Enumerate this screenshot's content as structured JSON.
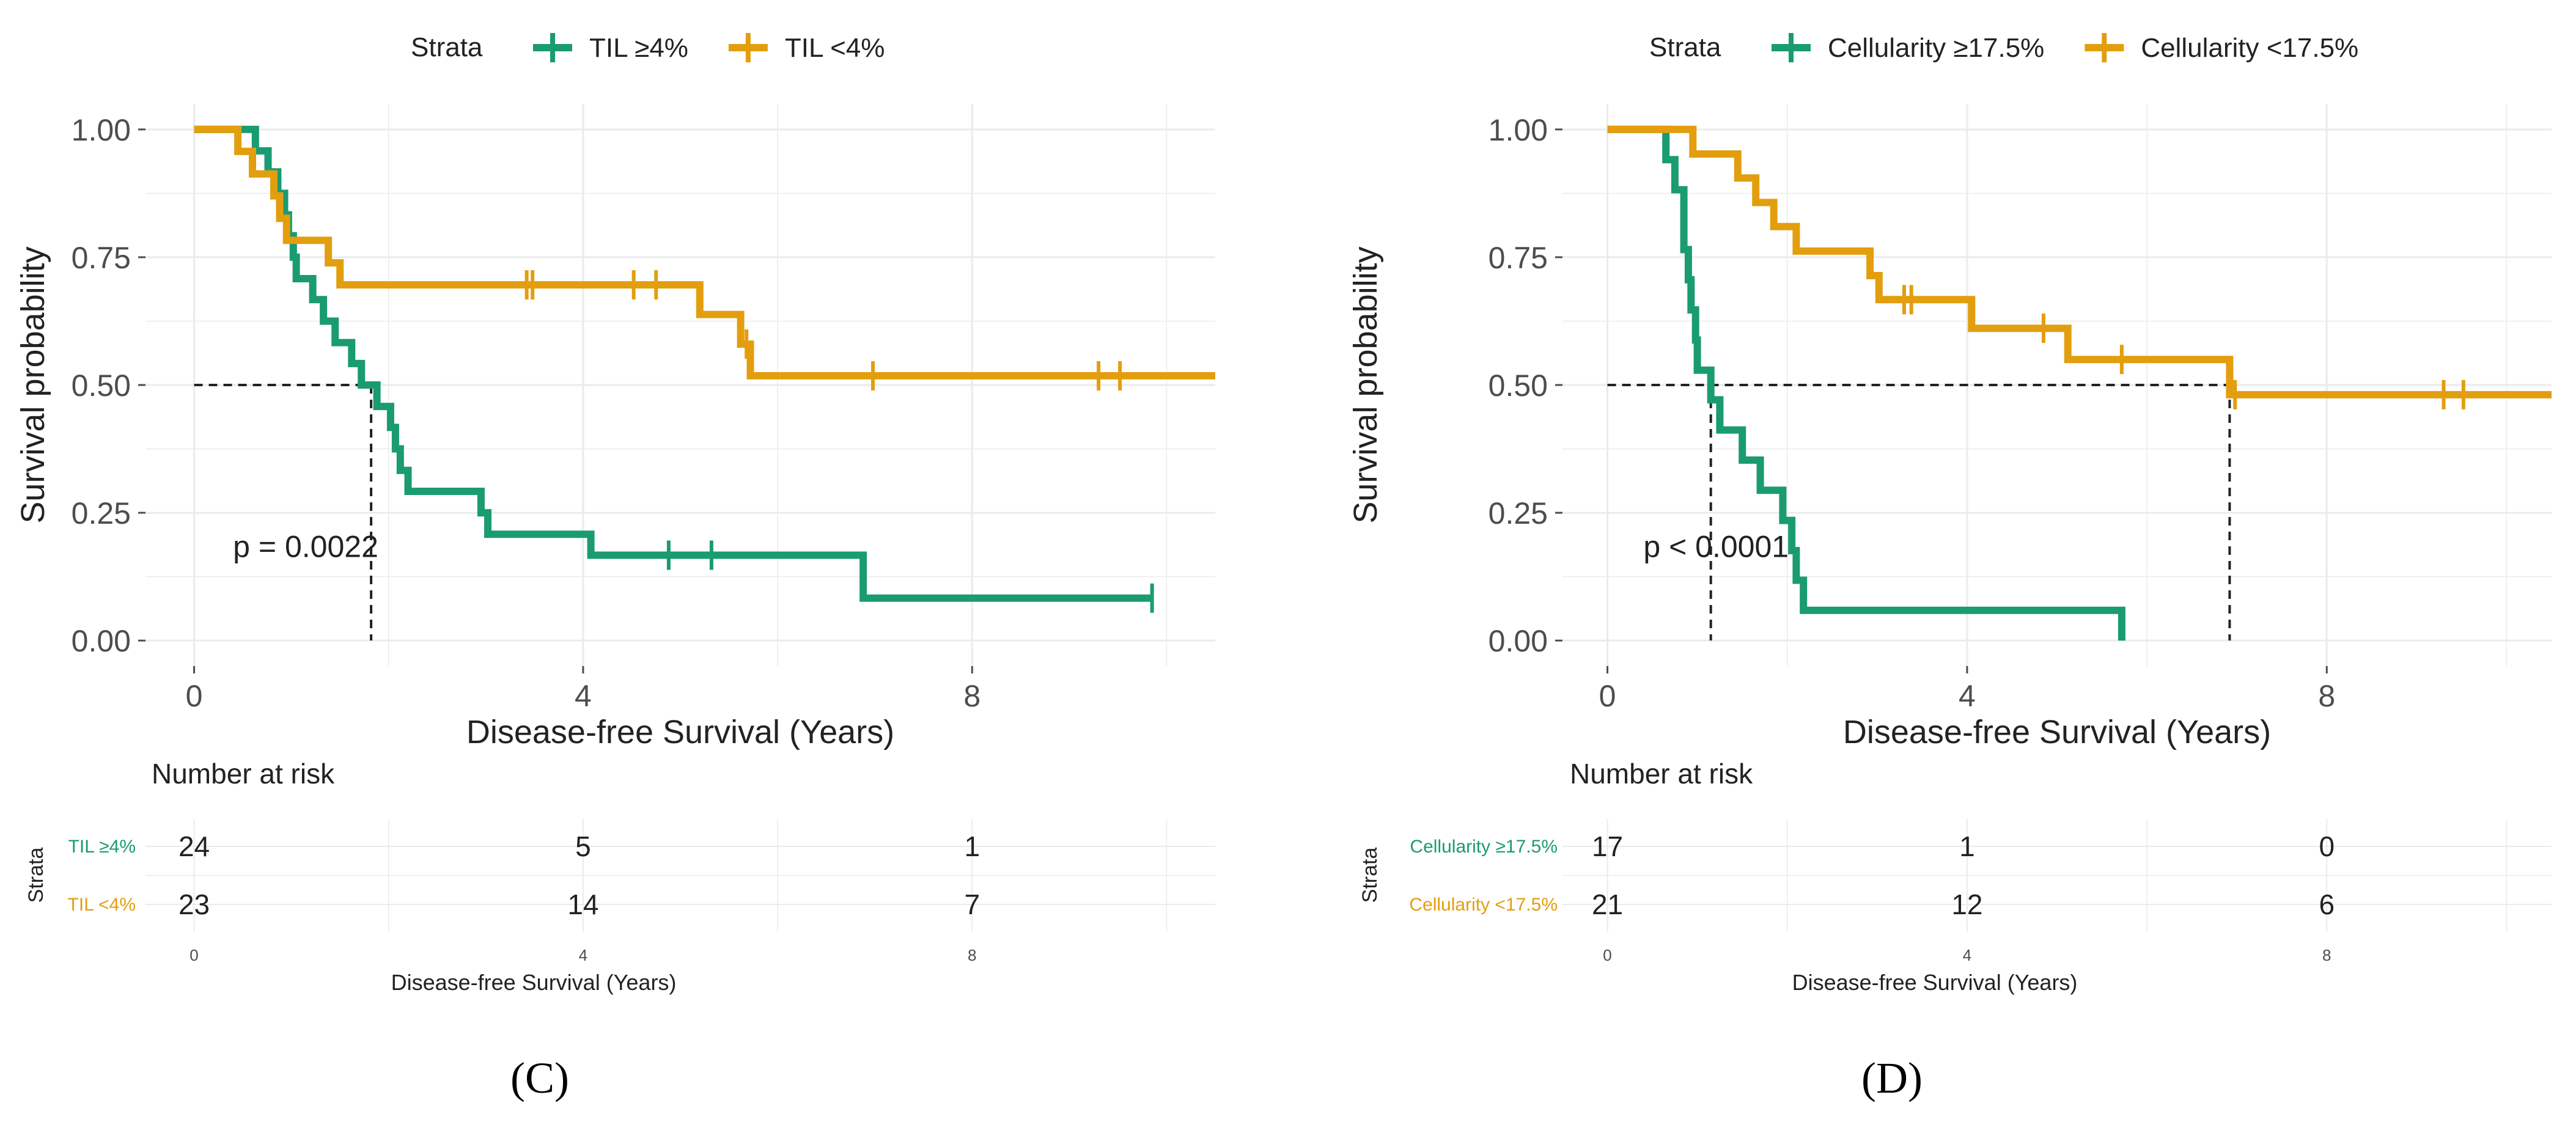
{
  "strata_word": "Strata",
  "number_at_risk_title": "Number at risk",
  "colors": {
    "high": "#1a9b72",
    "low": "#e39e0e",
    "grid": "#ebebeb",
    "text": "#222222",
    "tick": "#4d4d4d"
  },
  "chart_data": [
    {
      "type": "line",
      "panel_label": "(C)",
      "ylabel": "Survival probability",
      "xlabel": "Disease-free Survival (Years)",
      "xlim": [
        -0.5,
        10.5
      ],
      "ylim": [
        -0.05,
        1.05
      ],
      "x_ticks": [
        0,
        4,
        8
      ],
      "y_ticks": [
        0.0,
        0.25,
        0.5,
        0.75,
        1.0
      ],
      "y_tick_labels": [
        "0.00",
        "0.25",
        "0.50",
        "0.75",
        "1.00"
      ],
      "pvalue": "p = 0.0022",
      "median_lines": [
        1.82
      ],
      "series": [
        {
          "name": "TIL ≥4%",
          "color_key": "high",
          "steps": [
            [
              0,
              1.0
            ],
            [
              0.63,
              1.0
            ],
            [
              0.63,
              0.958
            ],
            [
              0.76,
              0.958
            ],
            [
              0.76,
              0.917
            ],
            [
              0.86,
              0.917
            ],
            [
              0.86,
              0.875
            ],
            [
              0.93,
              0.875
            ],
            [
              0.93,
              0.833
            ],
            [
              0.97,
              0.833
            ],
            [
              0.97,
              0.792
            ],
            [
              1.02,
              0.792
            ],
            [
              1.02,
              0.75
            ],
            [
              1.05,
              0.75
            ],
            [
              1.05,
              0.708
            ],
            [
              1.22,
              0.708
            ],
            [
              1.22,
              0.667
            ],
            [
              1.33,
              0.667
            ],
            [
              1.33,
              0.625
            ],
            [
              1.45,
              0.625
            ],
            [
              1.45,
              0.583
            ],
            [
              1.62,
              0.583
            ],
            [
              1.62,
              0.542
            ],
            [
              1.72,
              0.542
            ],
            [
              1.72,
              0.5
            ],
            [
              1.88,
              0.5
            ],
            [
              1.88,
              0.458
            ],
            [
              2.02,
              0.458
            ],
            [
              2.02,
              0.417
            ],
            [
              2.07,
              0.417
            ],
            [
              2.07,
              0.375
            ],
            [
              2.12,
              0.375
            ],
            [
              2.12,
              0.333
            ],
            [
              2.2,
              0.333
            ],
            [
              2.2,
              0.292
            ],
            [
              2.95,
              0.292
            ],
            [
              2.95,
              0.25
            ],
            [
              3.02,
              0.25
            ],
            [
              3.02,
              0.208
            ],
            [
              4.08,
              0.208
            ],
            [
              4.08,
              0.167
            ],
            [
              6.88,
              0.167
            ],
            [
              6.88,
              0.083
            ],
            [
              9.85,
              0.083
            ]
          ],
          "censor": [
            [
              4.88,
              0.167
            ],
            [
              5.32,
              0.167
            ],
            [
              9.85,
              0.083
            ]
          ],
          "risk": [
            "24",
            "5",
            "1"
          ]
        },
        {
          "name": "TIL <4%",
          "color_key": "low",
          "steps": [
            [
              0,
              1.0
            ],
            [
              0.45,
              1.0
            ],
            [
              0.45,
              0.957
            ],
            [
              0.6,
              0.957
            ],
            [
              0.6,
              0.913
            ],
            [
              0.82,
              0.913
            ],
            [
              0.82,
              0.87
            ],
            [
              0.88,
              0.87
            ],
            [
              0.88,
              0.826
            ],
            [
              0.95,
              0.826
            ],
            [
              0.95,
              0.783
            ],
            [
              1.38,
              0.783
            ],
            [
              1.38,
              0.739
            ],
            [
              1.5,
              0.739
            ],
            [
              1.5,
              0.696
            ],
            [
              5.2,
              0.696
            ],
            [
              5.2,
              0.638
            ],
            [
              5.62,
              0.638
            ],
            [
              5.62,
              0.58
            ],
            [
              5.72,
              0.58
            ],
            [
              5.72,
              0.518
            ],
            [
              10.5,
              0.518
            ]
          ],
          "censor": [
            [
              3.42,
              0.696
            ],
            [
              3.48,
              0.696
            ],
            [
              4.52,
              0.696
            ],
            [
              4.75,
              0.696
            ],
            [
              5.68,
              0.58
            ],
            [
              6.98,
              0.518
            ],
            [
              9.3,
              0.518
            ],
            [
              9.52,
              0.518
            ]
          ],
          "risk": [
            "23",
            "14",
            "7"
          ]
        }
      ]
    },
    {
      "type": "line",
      "panel_label": "(D)",
      "ylabel": "Survival probability",
      "xlabel": "Disease-free Survival (Years)",
      "xlim": [
        -0.5,
        10.5
      ],
      "ylim": [
        -0.05,
        1.05
      ],
      "x_ticks": [
        0,
        4,
        8
      ],
      "y_ticks": [
        0.0,
        0.25,
        0.5,
        0.75,
        1.0
      ],
      "y_tick_labels": [
        "0.00",
        "0.25",
        "0.50",
        "0.75",
        "1.00"
      ],
      "pvalue": "p < 0.0001",
      "median_lines": [
        1.15,
        6.92
      ],
      "series": [
        {
          "name": "Cellularity ≥17.5%",
          "color_key": "high",
          "steps": [
            [
              0,
              1.0
            ],
            [
              0.65,
              1.0
            ],
            [
              0.65,
              0.941
            ],
            [
              0.75,
              0.941
            ],
            [
              0.75,
              0.882
            ],
            [
              0.85,
              0.882
            ],
            [
              0.85,
              0.765
            ],
            [
              0.9,
              0.765
            ],
            [
              0.9,
              0.706
            ],
            [
              0.93,
              0.706
            ],
            [
              0.93,
              0.647
            ],
            [
              0.98,
              0.647
            ],
            [
              0.98,
              0.588
            ],
            [
              1.0,
              0.588
            ],
            [
              1.0,
              0.529
            ],
            [
              1.15,
              0.529
            ],
            [
              1.15,
              0.471
            ],
            [
              1.25,
              0.471
            ],
            [
              1.25,
              0.412
            ],
            [
              1.5,
              0.412
            ],
            [
              1.5,
              0.353
            ],
            [
              1.7,
              0.353
            ],
            [
              1.7,
              0.294
            ],
            [
              1.95,
              0.294
            ],
            [
              1.95,
              0.235
            ],
            [
              2.05,
              0.235
            ],
            [
              2.05,
              0.176
            ],
            [
              2.1,
              0.176
            ],
            [
              2.1,
              0.118
            ],
            [
              2.18,
              0.118
            ],
            [
              2.18,
              0.059
            ],
            [
              5.72,
              0.059
            ],
            [
              5.72,
              0.0
            ]
          ],
          "censor": [],
          "risk": [
            "17",
            "1",
            "0"
          ]
        },
        {
          "name": "Cellularity <17.5%",
          "color_key": "low",
          "steps": [
            [
              0,
              1.0
            ],
            [
              0.95,
              1.0
            ],
            [
              0.95,
              0.952
            ],
            [
              1.45,
              0.952
            ],
            [
              1.45,
              0.905
            ],
            [
              1.65,
              0.905
            ],
            [
              1.65,
              0.857
            ],
            [
              1.85,
              0.857
            ],
            [
              1.85,
              0.81
            ],
            [
              2.1,
              0.81
            ],
            [
              2.1,
              0.762
            ],
            [
              2.92,
              0.762
            ],
            [
              2.92,
              0.714
            ],
            [
              3.02,
              0.714
            ],
            [
              3.02,
              0.667
            ],
            [
              4.05,
              0.667
            ],
            [
              4.05,
              0.611
            ],
            [
              5.12,
              0.611
            ],
            [
              5.12,
              0.55
            ],
            [
              6.92,
              0.55
            ],
            [
              6.92,
              0.481
            ],
            [
              10.5,
              0.481
            ]
          ],
          "censor": [
            [
              3.3,
              0.667
            ],
            [
              3.38,
              0.667
            ],
            [
              4.85,
              0.611
            ],
            [
              5.72,
              0.55
            ],
            [
              6.98,
              0.481
            ],
            [
              9.3,
              0.481
            ],
            [
              9.52,
              0.481
            ]
          ],
          "risk": [
            "21",
            "12",
            "6"
          ]
        }
      ]
    }
  ]
}
